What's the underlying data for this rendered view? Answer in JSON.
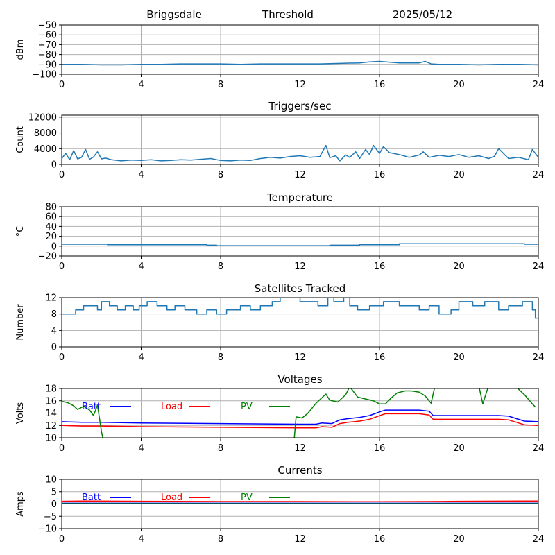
{
  "header": {
    "station": "Briggsdale",
    "mode": "Threshold",
    "date": "2025/05/12"
  },
  "chart_data": [
    {
      "type": "line",
      "id": "rssi",
      "title": "",
      "xlabel": "",
      "ylabel": "dBm",
      "xlim": [
        0,
        24
      ],
      "ylim": [
        -100,
        -50
      ],
      "xticks": [
        0,
        4,
        8,
        12,
        16,
        20,
        24
      ],
      "yticks": [
        -100,
        -90,
        -80,
        -70,
        -60,
        -50
      ],
      "grid": true,
      "series": [
        {
          "color": "#1f77b4",
          "x": [
            0,
            1,
            2,
            3,
            4,
            5,
            6,
            7,
            8,
            9,
            10,
            11,
            12,
            13,
            14,
            15,
            15.5,
            16,
            17,
            18,
            18.3,
            18.6,
            19,
            20,
            21,
            22,
            23,
            24
          ],
          "y": [
            -90,
            -90,
            -90.5,
            -90.5,
            -90,
            -90,
            -89.5,
            -89.5,
            -89.5,
            -90,
            -89.5,
            -89.5,
            -89.5,
            -89.5,
            -89,
            -88.5,
            -87.5,
            -87,
            -88.5,
            -88.5,
            -87,
            -89.5,
            -90,
            -90,
            -90.5,
            -90,
            -90,
            -90.5
          ]
        }
      ]
    },
    {
      "type": "line",
      "id": "triggers",
      "title": "Triggers/sec",
      "xlabel": "",
      "ylabel": "Count",
      "xlim": [
        0,
        24
      ],
      "ylim": [
        0,
        12500
      ],
      "xticks": [
        0,
        4,
        8,
        12,
        16,
        20,
        24
      ],
      "yticks": [
        0,
        4000,
        8000,
        12000
      ],
      "grid": true,
      "series": [
        {
          "color": "#1f77b4",
          "x": [
            0,
            0.2,
            0.4,
            0.6,
            0.8,
            1.0,
            1.2,
            1.4,
            1.6,
            1.8,
            2.0,
            2.2,
            2.5,
            3.0,
            3.5,
            4.0,
            4.5,
            5.0,
            5.5,
            6.0,
            6.5,
            7.0,
            7.5,
            8.0,
            8.5,
            9.0,
            9.5,
            10.0,
            10.5,
            11.0,
            11.5,
            12.0,
            12.5,
            13.0,
            13.3,
            13.5,
            13.8,
            14.0,
            14.3,
            14.5,
            14.8,
            15.0,
            15.3,
            15.5,
            15.7,
            16.0,
            16.2,
            16.5,
            17.0,
            17.5,
            18.0,
            18.2,
            18.5,
            19.0,
            19.5,
            20.0,
            20.5,
            21.0,
            21.5,
            21.8,
            22.0,
            22.5,
            23.0,
            23.5,
            23.7,
            24.0
          ],
          "y": [
            1500,
            2800,
            1200,
            3500,
            1400,
            1800,
            3800,
            1300,
            1900,
            3200,
            1400,
            1600,
            1200,
            900,
            1100,
            1000,
            1200,
            900,
            1000,
            1200,
            1100,
            1300,
            1500,
            1000,
            900,
            1100,
            1000,
            1500,
            1800,
            1600,
            2000,
            2200,
            1800,
            2000,
            4800,
            1700,
            2200,
            900,
            2400,
            1800,
            3200,
            1500,
            3800,
            2500,
            4800,
            2800,
            4500,
            3000,
            2500,
            1800,
            2400,
            3200,
            1800,
            2300,
            2000,
            2500,
            1800,
            2200,
            1500,
            2100,
            4000,
            1500,
            1800,
            1200,
            3800,
            1800
          ]
        }
      ]
    },
    {
      "type": "line",
      "id": "temperature",
      "title": "Temperature",
      "xlabel": "",
      "ylabel": "°C",
      "xlim": [
        0,
        24
      ],
      "ylim": [
        -20,
        80
      ],
      "xticks": [
        0,
        4,
        8,
        12,
        16,
        20,
        24
      ],
      "yticks": [
        -20,
        0,
        20,
        40,
        60,
        80
      ],
      "grid": true,
      "series": [
        {
          "color": "#1f77b4",
          "x": [
            0,
            2.3,
            2.3,
            7.3,
            7.3,
            7.8,
            7.8,
            13.5,
            13.5,
            15,
            15,
            17,
            17,
            23.3,
            23.3,
            24
          ],
          "y": [
            4,
            4,
            3,
            3,
            2,
            2,
            1,
            1,
            2,
            2,
            3,
            3,
            5,
            5,
            4,
            4
          ]
        }
      ]
    },
    {
      "type": "line",
      "id": "satellites",
      "title": "Satellites Tracked",
      "xlabel": "",
      "ylabel": "Number",
      "xlim": [
        0,
        24
      ],
      "ylim": [
        0,
        12
      ],
      "xticks": [
        0,
        4,
        8,
        12,
        16,
        20,
        24
      ],
      "yticks": [
        0,
        4,
        8,
        12
      ],
      "grid": true,
      "series": [
        {
          "color": "#1f77b4",
          "x": [
            0,
            0.7,
            0.7,
            1.1,
            1.1,
            1.8,
            1.8,
            2.0,
            2.0,
            2.4,
            2.4,
            2.8,
            2.8,
            3.2,
            3.2,
            3.6,
            3.6,
            3.9,
            3.9,
            4.3,
            4.3,
            4.8,
            4.8,
            5.3,
            5.3,
            5.7,
            5.7,
            6.2,
            6.2,
            6.8,
            6.8,
            7.3,
            7.3,
            7.8,
            7.8,
            8.3,
            8.3,
            9.0,
            9.0,
            9.5,
            9.5,
            10.0,
            10.0,
            10.6,
            10.6,
            11.0,
            11.0,
            12.0,
            12.0,
            12.9,
            12.9,
            13.4,
            13.4,
            13.7,
            13.7,
            14.2,
            14.2,
            14.5,
            14.5,
            14.9,
            14.9,
            15.5,
            15.5,
            16.2,
            16.2,
            17.0,
            17.0,
            18.0,
            18.0,
            18.5,
            18.5,
            19.0,
            19.0,
            19.6,
            19.6,
            20.0,
            20.0,
            20.7,
            20.7,
            21.3,
            21.3,
            22.0,
            22.0,
            22.5,
            22.5,
            23.2,
            23.2,
            23.7,
            23.7,
            23.85,
            23.85,
            24
          ],
          "y": [
            8,
            8,
            9,
            9,
            10,
            10,
            9,
            9,
            11,
            11,
            10,
            10,
            9,
            9,
            10,
            10,
            9,
            9,
            10,
            10,
            11,
            11,
            10,
            10,
            9,
            9,
            10,
            10,
            9,
            9,
            8,
            8,
            9,
            9,
            8,
            8,
            9,
            9,
            10,
            10,
            9,
            9,
            10,
            10,
            11,
            11,
            12,
            12,
            11,
            11,
            10,
            10,
            12,
            12,
            11,
            11,
            12,
            12,
            10,
            10,
            9,
            9,
            10,
            10,
            11,
            11,
            10,
            10,
            9,
            9,
            10,
            10,
            8,
            8,
            9,
            9,
            11,
            11,
            10,
            10,
            11,
            11,
            9,
            9,
            10,
            10,
            11,
            11,
            9,
            9,
            7,
            7
          ]
        }
      ]
    },
    {
      "type": "line",
      "id": "voltages",
      "title": "Voltages",
      "xlabel": "",
      "ylabel": "Volts",
      "xlim": [
        0,
        24
      ],
      "ylim": [
        10,
        18
      ],
      "xticks": [
        0,
        4,
        8,
        12,
        16,
        20,
        24
      ],
      "yticks": [
        10,
        12,
        14,
        16,
        18
      ],
      "grid": true,
      "legend": "top-left",
      "series": [
        {
          "name": "Batt",
          "color": "#0000ff",
          "x": [
            0,
            1,
            2,
            4,
            8,
            12,
            12.8,
            13.1,
            13.6,
            14.0,
            14.4,
            15,
            15.5,
            16.1,
            16.3,
            17,
            18,
            18.5,
            18.7,
            20,
            21,
            22,
            22.5,
            23,
            23.3,
            24
          ],
          "y": [
            12.6,
            12.5,
            12.5,
            12.4,
            12.3,
            12.2,
            12.2,
            12.4,
            12.3,
            12.9,
            13.1,
            13.3,
            13.6,
            14.3,
            14.5,
            14.5,
            14.5,
            14.3,
            13.6,
            13.6,
            13.6,
            13.6,
            13.5,
            13.0,
            12.7,
            12.6
          ]
        },
        {
          "name": "Load",
          "color": "#ff0000",
          "x": [
            0,
            1,
            2,
            4,
            8,
            12,
            12.8,
            13.1,
            13.6,
            14.0,
            14.4,
            15,
            15.5,
            16.1,
            16.3,
            17,
            18,
            18.5,
            18.7,
            20,
            21,
            22,
            22.5,
            23,
            23.3,
            24
          ],
          "y": [
            12.0,
            11.9,
            11.9,
            11.8,
            11.7,
            11.6,
            11.6,
            11.8,
            11.7,
            12.3,
            12.5,
            12.7,
            13.0,
            13.7,
            13.9,
            13.9,
            13.9,
            13.7,
            13.0,
            13.0,
            13.0,
            13.0,
            12.9,
            12.4,
            12.1,
            12.0
          ]
        },
        {
          "name": "PV",
          "color": "#008000",
          "x": [
            0,
            0.3,
            0.6,
            0.8,
            1.1,
            1.4,
            1.6,
            1.8,
            2.0,
            2.1,
            11.7,
            11.8,
            12.1,
            12.4,
            12.8,
            13.3,
            13.5,
            13.9,
            14.3,
            14.5,
            14.9,
            15.3,
            15.7,
            16.0,
            16.3,
            16.6,
            16.9,
            17.3,
            17.6,
            18.0,
            18.3,
            18.6,
            18.8,
            21.0,
            21.2,
            21.5,
            22.8,
            23.3,
            23.7,
            23.85
          ],
          "y": [
            15.9,
            15.7,
            15.2,
            14.6,
            15.1,
            14.5,
            13.6,
            15.3,
            11.0,
            9.5,
            9.5,
            13.4,
            13.2,
            14.0,
            15.6,
            17.1,
            16.1,
            15.8,
            17.0,
            18.3,
            16.6,
            16.3,
            16.0,
            15.5,
            15.5,
            16.5,
            17.3,
            17.6,
            17.6,
            17.4,
            16.8,
            15.6,
            18.5,
            18.5,
            15.5,
            18.5,
            18.5,
            17.0,
            15.5,
            15.0
          ]
        }
      ]
    },
    {
      "type": "line",
      "id": "currents",
      "title": "Currents",
      "xlabel": "",
      "ylabel": "Amps",
      "xlim": [
        0,
        24
      ],
      "ylim": [
        -10,
        10
      ],
      "xticks": [
        0,
        4,
        8,
        12,
        16,
        20,
        24
      ],
      "yticks": [
        -10,
        -5,
        0,
        5,
        10
      ],
      "grid": true,
      "legend": "top-left",
      "series": [
        {
          "name": "Batt",
          "color": "#0000ff",
          "x": [
            0,
            4,
            8,
            12,
            16,
            20,
            24
          ],
          "y": [
            0.3,
            0.3,
            0.3,
            0.3,
            0.3,
            0.3,
            0.3
          ]
        },
        {
          "name": "Load",
          "color": "#ff0000",
          "x": [
            0,
            1,
            4,
            8,
            12,
            16,
            18.5,
            20,
            24
          ],
          "y": [
            1.1,
            1.2,
            1.1,
            1.0,
            1.0,
            0.9,
            1.0,
            1.1,
            1.2
          ]
        },
        {
          "name": "PV",
          "color": "#008000",
          "x": [
            0,
            4,
            8,
            12,
            16,
            20,
            24
          ],
          "y": [
            0.1,
            0.1,
            0.1,
            0.1,
            0.1,
            0.1,
            0.1
          ]
        }
      ]
    }
  ]
}
